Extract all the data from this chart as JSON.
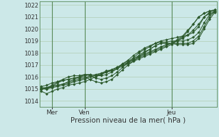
{
  "title": "",
  "xlabel": "Pression niveau de la mer( hPa )",
  "ylabel": "",
  "ylim": [
    1013.5,
    1022.3
  ],
  "xlim": [
    -1,
    97
  ],
  "yticks": [
    1014,
    1015,
    1016,
    1017,
    1018,
    1019,
    1020,
    1021,
    1022
  ],
  "xtick_positions": [
    6,
    24,
    72
  ],
  "xtick_labels": [
    "Mer",
    "Ven",
    "Jeu"
  ],
  "vline_positions": [
    6,
    24,
    72
  ],
  "bg_color": "#cce8e8",
  "grid_color": "#b0ccb0",
  "line_color": "#2d5a2d",
  "marker": "D",
  "markersize": 2.2,
  "linewidth": 0.75,
  "series": [
    [
      0,
      1014.8,
      3,
      1014.6,
      6,
      1014.8,
      9,
      1015.0,
      12,
      1015.1,
      15,
      1015.3,
      18,
      1015.4,
      21,
      1015.5,
      24,
      1015.6,
      27,
      1015.8,
      30,
      1016.0,
      33,
      1016.2,
      36,
      1016.4,
      39,
      1016.5,
      42,
      1016.7,
      45,
      1016.9,
      48,
      1017.1,
      51,
      1017.3,
      54,
      1017.5,
      57,
      1017.7,
      60,
      1017.9,
      63,
      1018.1,
      66,
      1018.3,
      69,
      1018.5,
      72,
      1018.7,
      75,
      1019.0,
      78,
      1019.3,
      81,
      1019.8,
      84,
      1020.4,
      87,
      1021.0,
      90,
      1021.3,
      93,
      1021.5,
      96,
      1021.6
    ],
    [
      0,
      1015.0,
      3,
      1015.0,
      6,
      1015.1,
      9,
      1015.2,
      12,
      1015.3,
      15,
      1015.4,
      18,
      1015.6,
      21,
      1015.7,
      24,
      1015.8,
      27,
      1016.0,
      30,
      1016.1,
      33,
      1016.3,
      36,
      1016.4,
      39,
      1016.6,
      42,
      1016.8,
      45,
      1017.0,
      48,
      1017.2,
      51,
      1017.5,
      54,
      1017.7,
      57,
      1017.9,
      60,
      1018.1,
      63,
      1018.3,
      66,
      1018.5,
      69,
      1018.7,
      72,
      1018.8,
      75,
      1019.1,
      78,
      1019.4,
      81,
      1019.9,
      84,
      1020.4,
      87,
      1021.0,
      90,
      1021.3,
      93,
      1021.5,
      96,
      1021.5
    ],
    [
      0,
      1015.0,
      3,
      1015.1,
      6,
      1015.2,
      9,
      1015.3,
      12,
      1015.4,
      15,
      1015.5,
      18,
      1015.7,
      21,
      1015.8,
      24,
      1015.9,
      27,
      1016.1,
      30,
      1016.2,
      33,
      1016.3,
      36,
      1016.5,
      39,
      1016.6,
      42,
      1016.8,
      45,
      1017.0,
      48,
      1017.2,
      51,
      1017.4,
      54,
      1017.6,
      57,
      1017.8,
      60,
      1018.0,
      63,
      1018.2,
      66,
      1018.4,
      69,
      1018.6,
      72,
      1018.8,
      75,
      1019.0,
      78,
      1019.2,
      81,
      1019.5,
      84,
      1019.9,
      87,
      1020.4,
      90,
      1021.0,
      93,
      1021.3,
      96,
      1021.4
    ],
    [
      0,
      1015.0,
      3,
      1015.1,
      6,
      1015.2,
      9,
      1015.3,
      12,
      1015.4,
      15,
      1015.6,
      18,
      1015.8,
      21,
      1016.0,
      24,
      1016.1,
      27,
      1016.2,
      30,
      1016.1,
      33,
      1016.2,
      36,
      1016.4,
      39,
      1016.6,
      42,
      1016.8,
      45,
      1017.1,
      48,
      1017.3,
      51,
      1017.6,
      54,
      1018.0,
      57,
      1018.3,
      60,
      1018.5,
      63,
      1018.8,
      66,
      1019.0,
      69,
      1019.1,
      72,
      1019.2,
      75,
      1019.3,
      78,
      1019.4,
      81,
      1019.5,
      84,
      1019.7,
      87,
      1020.2,
      90,
      1021.0,
      93,
      1021.4,
      96,
      1021.6
    ],
    [
      0,
      1015.2,
      3,
      1015.3,
      6,
      1015.5,
      9,
      1015.6,
      12,
      1015.7,
      15,
      1015.8,
      18,
      1015.9,
      21,
      1016.0,
      24,
      1016.2,
      27,
      1016.2,
      30,
      1016.1,
      33,
      1016.1,
      36,
      1016.2,
      39,
      1016.4,
      42,
      1016.7,
      45,
      1017.1,
      48,
      1017.4,
      51,
      1017.8,
      54,
      1018.1,
      57,
      1018.4,
      60,
      1018.6,
      63,
      1018.8,
      66,
      1018.9,
      69,
      1018.9,
      72,
      1019.0,
      75,
      1019.0,
      78,
      1019.0,
      81,
      1019.1,
      84,
      1019.3,
      87,
      1019.7,
      90,
      1020.5,
      93,
      1021.2,
      96,
      1021.5
    ],
    [
      0,
      1015.1,
      3,
      1015.1,
      6,
      1015.3,
      9,
      1015.6,
      12,
      1015.8,
      15,
      1016.0,
      18,
      1016.1,
      21,
      1016.1,
      24,
      1016.2,
      27,
      1016.1,
      30,
      1015.9,
      33,
      1015.8,
      36,
      1015.9,
      39,
      1016.1,
      42,
      1016.4,
      45,
      1016.8,
      48,
      1017.2,
      51,
      1017.5,
      54,
      1017.8,
      57,
      1018.1,
      60,
      1018.3,
      63,
      1018.6,
      66,
      1018.8,
      69,
      1018.8,
      72,
      1018.8,
      75,
      1018.8,
      78,
      1018.8,
      81,
      1018.8,
      84,
      1019.0,
      87,
      1019.4,
      90,
      1020.2,
      93,
      1021.0,
      96,
      1021.5
    ],
    [
      0,
      1015.0,
      3,
      1015.0,
      6,
      1015.2,
      9,
      1015.5,
      12,
      1015.7,
      15,
      1015.8,
      18,
      1015.9,
      21,
      1015.9,
      24,
      1016.0,
      27,
      1015.8,
      30,
      1015.6,
      33,
      1015.5,
      36,
      1015.6,
      39,
      1015.8,
      42,
      1016.2,
      45,
      1016.6,
      48,
      1017.0,
      51,
      1017.3,
      54,
      1017.7,
      57,
      1018.0,
      60,
      1018.3,
      63,
      1018.6,
      66,
      1018.8,
      69,
      1018.8,
      72,
      1018.8,
      75,
      1018.7,
      78,
      1018.7,
      81,
      1018.7,
      84,
      1018.8,
      87,
      1019.2,
      90,
      1020.0,
      93,
      1020.8,
      96,
      1021.4
    ]
  ]
}
